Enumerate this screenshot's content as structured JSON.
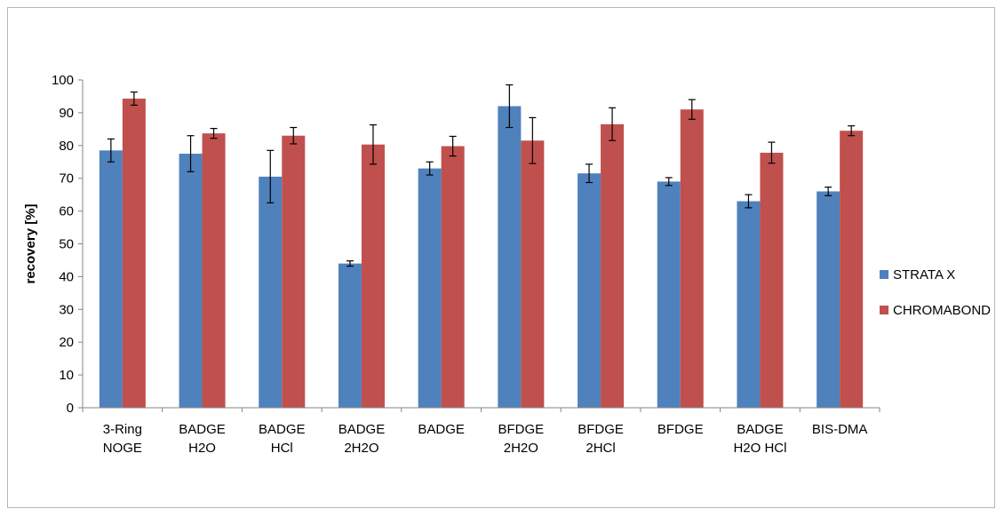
{
  "chart_data": {
    "type": "bar",
    "title": "",
    "xlabel": "",
    "ylabel": "recovery [%]",
    "ylim": [
      0,
      100
    ],
    "yticks": [
      0,
      10,
      20,
      30,
      40,
      50,
      60,
      70,
      80,
      90,
      100
    ],
    "grid": false,
    "legend_position": "right",
    "categories": [
      [
        "3-Ring",
        "NOGE"
      ],
      [
        "BADGE",
        "H2O"
      ],
      [
        "BADGE",
        "HCl"
      ],
      [
        "BADGE",
        "2H2O"
      ],
      [
        "BADGE"
      ],
      [
        "BFDGE",
        "2H2O"
      ],
      [
        "BFDGE",
        "2HCl"
      ],
      [
        "BFDGE"
      ],
      [
        "BADGE",
        "H2O HCl"
      ],
      [
        "BIS-DMA"
      ]
    ],
    "series": [
      {
        "name": "STRATA X",
        "color": "#4f81bd",
        "values": [
          78.5,
          77.5,
          70.5,
          44,
          73,
          92,
          71.5,
          69,
          63,
          66
        ],
        "errors": [
          3.5,
          5.5,
          8,
          0.8,
          2,
          6.5,
          2.8,
          1.2,
          2,
          1.3
        ]
      },
      {
        "name": "CHROMABOND",
        "color": "#c0504d",
        "values": [
          94.3,
          83.7,
          83,
          80.3,
          79.8,
          81.5,
          86.5,
          91,
          77.8,
          84.5
        ],
        "errors": [
          2,
          1.5,
          2.5,
          6,
          3,
          7,
          5,
          3,
          3.2,
          1.5
        ]
      }
    ]
  }
}
